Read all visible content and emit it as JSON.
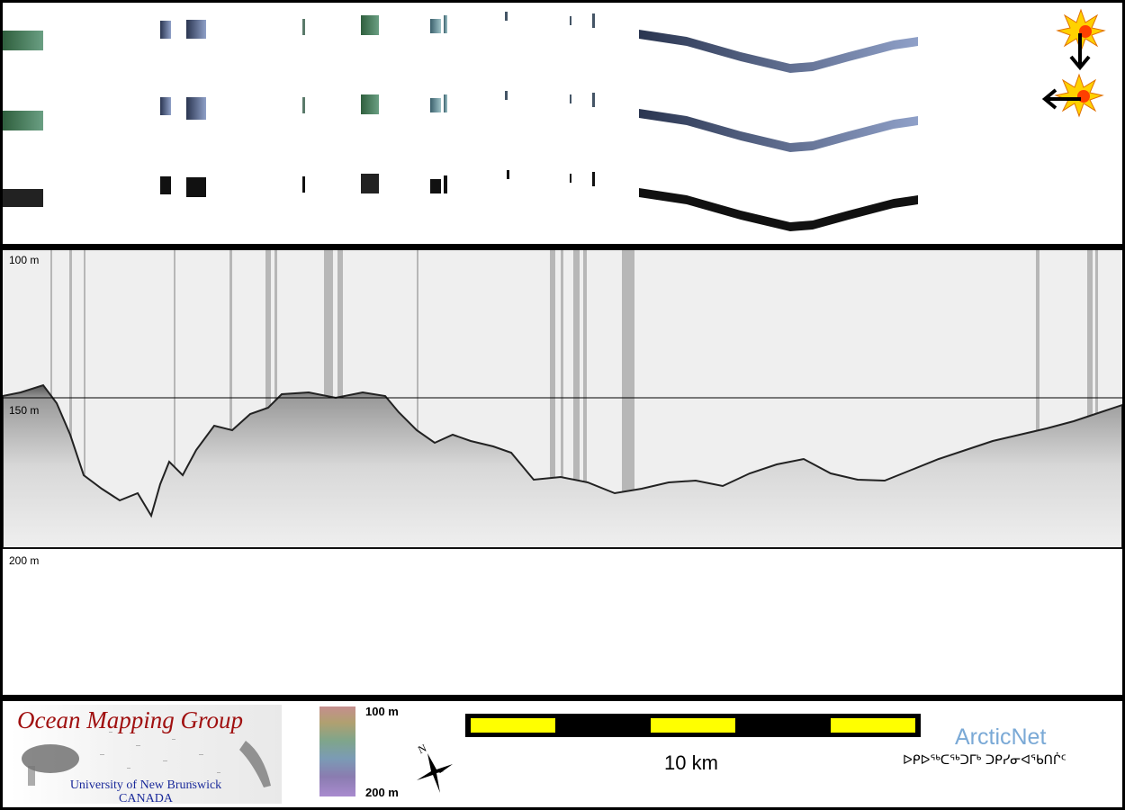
{
  "depth_axis": {
    "label_top": "100 m",
    "label_mid": "150 m",
    "label_bottom": "200 m"
  },
  "legend": {
    "logo_title": "Ocean Mapping Group",
    "logo_sub1": "University of New Brunswick",
    "logo_sub2": "CANADA",
    "colorbar_top": "100 m",
    "colorbar_bottom": "200 m",
    "compass_letter": "N",
    "scale_label": "10 km",
    "arcticnet_title": "ArcticNet",
    "arcticnet_sub": "ᐅᑭᐅᖅᑕᖅᑐᒥᒃ ᑐᑭᓯᓂᐊᖃᑎᒌᑦ"
  },
  "colors": {
    "background": "#000000",
    "panel": "#ffffff",
    "ogm_red": "#a01010",
    "ogm_blue": "#1a2a9a",
    "arcticnet_blue": "#7aa9d6",
    "scale_yellow": "#ffff00"
  },
  "icons": {
    "sun_illumination_down": "sun-with-down-arrow-icon",
    "sun_illumination_left": "sun-with-left-arrow-icon",
    "compass": "north-arrow-icon"
  }
}
